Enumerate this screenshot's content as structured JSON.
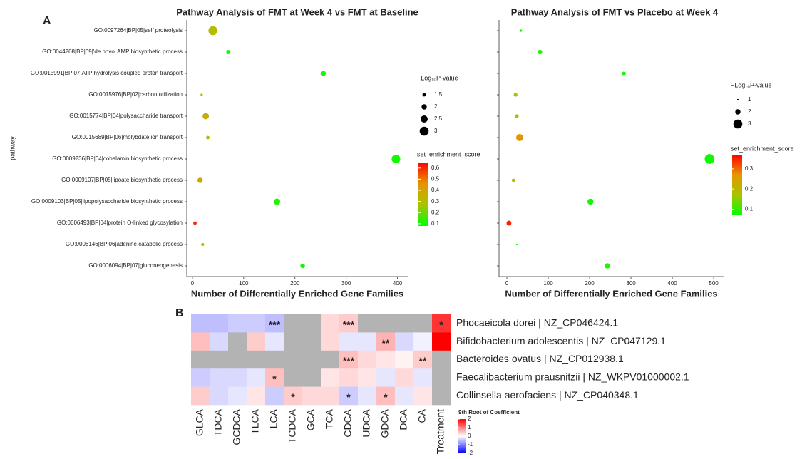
{
  "panel_labels": [
    "A",
    "B"
  ],
  "chart_data": [
    {
      "type": "scatter",
      "title": "Pathway Analysis of FMT at Week 4 vs FMT at Baseline",
      "xlabel": "Number of Differentially Enriched Gene Families",
      "ylabel": "pathway",
      "categories": [
        "GO:0097264|BP|05|self proteolysis",
        "GO:0044208|BP|09|'de novo' AMP biosynthetic process",
        "GO:0015991|BP|07|ATP hydrolysis coupled proton transport",
        "GO:0015976|BP|02|carbon utilization",
        "GO:0015774|BP|04|polysaccharide transport",
        "GO:0015689|BP|06|molybdate ion transport",
        "GO:0009236|BP|04|cobalamin biosynthetic process",
        "GO:0009107|BP|05|lipoate biosynthetic process",
        "GO:0009103|BP|05|lipopolysaccharide biosynthetic process",
        "GO:0006493|BP|04|protein O-linked glycosylation",
        "GO:0006146|BP|06|adenine catabolic process",
        "GO:0006094|BP|07|gluconeogenesis"
      ],
      "values": [
        40,
        70,
        255,
        18,
        26,
        30,
        397,
        15,
        165,
        5,
        20,
        215
      ],
      "sizes": [
        3.0,
        1.7,
        2.0,
        1.2,
        2.3,
        1.5,
        2.9,
        2.0,
        2.3,
        1.5,
        1.4,
        1.8
      ],
      "scores": [
        0.3,
        0.1,
        0.1,
        0.3,
        0.35,
        0.25,
        0.1,
        0.4,
        0.12,
        0.6,
        0.3,
        0.1
      ],
      "xlim": [
        -11,
        420
      ],
      "xticks": [
        0,
        100,
        200,
        300,
        400
      ],
      "size_legend_title": "−Log₁₀P-value",
      "sizeticks": [
        1.5,
        2.0,
        2.5,
        3.0
      ],
      "color_legend_title": "set_enrichment_score",
      "clim": [
        0.08,
        0.65
      ],
      "cticks": [
        0.1,
        0.2,
        0.3,
        0.4,
        0.5,
        0.6
      ],
      "colorscale": [
        "#00ff00",
        "#a8c400",
        "#e69500",
        "#ff0000"
      ]
    },
    {
      "type": "scatter",
      "title": "Pathway Analysis of FMT vs Placebo at Week 4",
      "xlabel": "Number of Differentially Enriched Gene Families",
      "values": [
        34,
        80,
        283,
        21,
        24,
        31,
        490,
        16,
        202,
        5,
        24,
        243
      ],
      "sizes": [
        1.2,
        1.8,
        1.6,
        1.6,
        1.6,
        2.5,
        3.2,
        1.5,
        2.2,
        1.9,
        1.0,
        2.0
      ],
      "scores": [
        0.08,
        0.09,
        0.08,
        0.18,
        0.18,
        0.26,
        0.08,
        0.2,
        0.08,
        0.35,
        0.08,
        0.09
      ],
      "xlim": [
        -19,
        524
      ],
      "xticks": [
        0,
        100,
        200,
        300,
        400,
        500
      ],
      "size_legend_title": "−Log₁₀P-value",
      "sizeticks": [
        1,
        2,
        3
      ],
      "color_legend_title": "set_enrichment_score",
      "clim": [
        0.07,
        0.37
      ],
      "cticks": [
        0.1,
        0.2,
        0.3
      ],
      "colorscale": [
        "#00ff00",
        "#a8c400",
        "#e69500",
        "#ff0000"
      ]
    },
    {
      "type": "heatmap",
      "columns": [
        "GLCA",
        "TDCA",
        "GCDCA",
        "TLCA",
        "LCA",
        "TCDCA",
        "GCA",
        "TCA",
        "CDCA",
        "UDCA",
        "GDCA",
        "DCA",
        "CA",
        "Treatment"
      ],
      "rows": [
        "Phocaeicola dorei | NZ_CP046424.1",
        "Bifidobacterium adolescentis | NZ_CP047129.1",
        "Bacteroides ovatus | NZ_CP012938.1",
        "Faecalibacterium prausnitzii | NZ_WKPV01000002.1",
        "Collinsella aerofaciens | NZ_CP040348.1"
      ],
      "values": [
        [
          -0.5,
          -0.5,
          -0.4,
          -0.4,
          -0.5,
          null,
          null,
          0.3,
          0.4,
          null,
          null,
          null,
          null,
          1.6
        ],
        [
          0.5,
          -0.3,
          null,
          0.4,
          -0.2,
          null,
          null,
          0.3,
          -0.2,
          -0.2,
          0.6,
          -0.3,
          -0.1,
          2
        ],
        [
          null,
          null,
          null,
          null,
          null,
          null,
          null,
          null,
          0.5,
          0.3,
          0.2,
          0.1,
          0.4,
          null
        ],
        [
          -0.4,
          -0.3,
          -0.3,
          -0.2,
          0.5,
          null,
          null,
          0.2,
          0.3,
          0.2,
          -0.2,
          0.3,
          -0.2,
          null
        ],
        [
          0.4,
          -0.3,
          -0.2,
          0.2,
          -0.4,
          0.4,
          0.3,
          0.3,
          -0.4,
          -0.2,
          0.5,
          -0.2,
          0.2,
          null
        ]
      ],
      "annotations": [
        [
          null,
          null,
          null,
          null,
          "***",
          null,
          null,
          null,
          "***",
          null,
          null,
          null,
          null,
          "*"
        ],
        [
          null,
          null,
          null,
          null,
          null,
          null,
          null,
          null,
          null,
          null,
          "**",
          null,
          null,
          null
        ],
        [
          null,
          null,
          null,
          null,
          null,
          null,
          null,
          null,
          "***",
          null,
          null,
          null,
          "**",
          null
        ],
        [
          null,
          null,
          null,
          null,
          "*",
          null,
          null,
          null,
          null,
          null,
          null,
          null,
          null,
          null
        ],
        [
          null,
          null,
          null,
          null,
          null,
          "*",
          null,
          null,
          "*",
          null,
          "*",
          null,
          null,
          null
        ]
      ],
      "legend_title": "9th Root of Coefficient",
      "zlim": [
        -2,
        2
      ],
      "zticks": [
        2,
        1,
        0,
        -1,
        -2
      ],
      "colorscale": [
        "#0000ff",
        "#ffffff",
        "#ff0000"
      ],
      "na_color": "#b3b3b3"
    }
  ]
}
